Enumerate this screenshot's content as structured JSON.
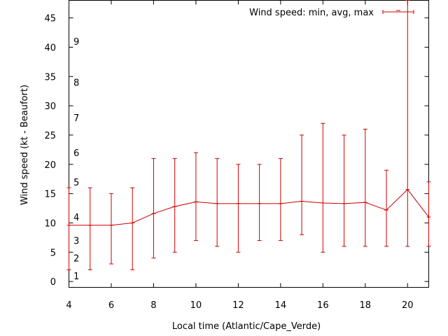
{
  "chart_data": {
    "type": "line",
    "title": "",
    "xlabel": "Local time (Atlantic/Cape_Verde)",
    "ylabel": "Wind speed (kt - Beaufort)",
    "xlim": [
      4,
      21
    ],
    "ylim": [
      -1,
      48
    ],
    "x_ticks": [
      4,
      6,
      8,
      10,
      12,
      14,
      16,
      18,
      20
    ],
    "y_ticks": [
      0,
      5,
      10,
      15,
      20,
      25,
      30,
      35,
      40,
      45
    ],
    "beaufort_labels": [
      {
        "label": "1",
        "kt": 1
      },
      {
        "label": "2",
        "kt": 4
      },
      {
        "label": "3",
        "kt": 7
      },
      {
        "label": "4",
        "kt": 11
      },
      {
        "label": "5",
        "kt": 17
      },
      {
        "label": "6",
        "kt": 22
      },
      {
        "label": "7",
        "kt": 28
      },
      {
        "label": "8",
        "kt": 34
      },
      {
        "label": "9",
        "kt": 41
      }
    ],
    "grid": false,
    "legend_position": "top-right",
    "series": [
      {
        "name": "Wind speed: min, avg, max",
        "color": "#cc0000",
        "x": [
          4,
          5,
          6,
          7,
          8,
          9,
          10,
          11,
          12,
          13,
          14,
          15,
          16,
          17,
          18,
          19,
          20,
          21
        ],
        "avg": [
          9.6,
          9.6,
          9.6,
          10,
          11.6,
          12.8,
          13.6,
          13.3,
          13.3,
          13.3,
          13.3,
          13.7,
          13.4,
          13.3,
          13.5,
          12.2,
          15.7,
          11
        ],
        "min": [
          2,
          2,
          3,
          2,
          4,
          5,
          7,
          6,
          5,
          7,
          7,
          8,
          5,
          6,
          6,
          6,
          6,
          6
        ],
        "max": [
          16,
          16,
          15,
          16,
          21,
          21,
          22,
          21,
          20,
          20,
          21,
          25,
          27,
          25,
          26,
          19,
          48,
          17
        ]
      }
    ]
  }
}
